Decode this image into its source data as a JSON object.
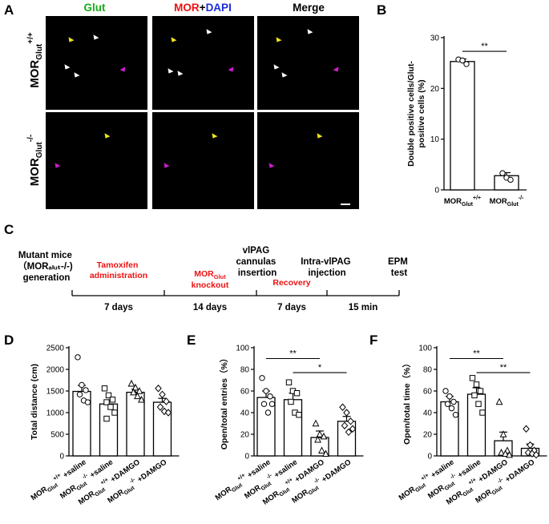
{
  "panels": {
    "A": {
      "label": "A",
      "columns": [
        {
          "text": "Glut",
          "color": "#1aaa1a"
        },
        {
          "text": "MOR",
          "color": "#ee1111"
        },
        {
          "text": "+",
          "color": "#000000"
        },
        {
          "text": "DAPI",
          "color": "#1b2cd8"
        },
        {
          "text": "Merge",
          "color": "#000000"
        }
      ],
      "row_labels": [
        {
          "base": "MOR",
          "sub": "Glut",
          "sup": "+/+"
        },
        {
          "base": "MOR",
          "sub": "Glut",
          "sup": "-/-"
        }
      ],
      "arrow_colors": {
        "white": "#ffffff",
        "yellow": "#f4e21a",
        "magenta": "#d21ad2"
      }
    },
    "B": {
      "label": "B"
    },
    "C": {
      "label": "C",
      "events": [
        {
          "lines": [
            "Mutant mice",
            "（MORₐₗᵤₜ-/-)",
            "generation"
          ],
          "color": "#000000"
        },
        {
          "lines": [
            "Tamoxifen",
            "administration"
          ],
          "color": "#ee1111"
        },
        {
          "lines": [
            "MOR",
            "knockout"
          ],
          "sub": "Glut",
          "color": "#ee1111"
        },
        {
          "lines": [
            "vlPAG",
            "cannulas",
            "insertion"
          ],
          "color": "#000000"
        },
        {
          "lines": [
            "Recovery"
          ],
          "color": "#ee1111"
        },
        {
          "lines": [
            "Intra-vlPAG",
            "injection"
          ],
          "color": "#000000"
        },
        {
          "lines": [
            "EPM",
            "test"
          ],
          "color": "#000000"
        }
      ],
      "durations": [
        "7 days",
        "14 days",
        "7 days",
        "15 min"
      ]
    },
    "D": {
      "label": "D"
    },
    "E": {
      "label": "E"
    },
    "F": {
      "label": "F"
    }
  },
  "chart_data": [
    {
      "id": "B",
      "type": "bar",
      "categories": [
        "MOR_Glut+/+",
        "MOR_Glut-/-"
      ],
      "category_labels": [
        {
          "base": "MOR",
          "sub": "Glut",
          "sup": "+/+"
        },
        {
          "base": "MOR",
          "sub": "Glut",
          "sup": "-/-"
        }
      ],
      "values": [
        25.3,
        2.8
      ],
      "errors": [
        0.5,
        0.6
      ],
      "points": [
        [
          25.7,
          25.5,
          24.8
        ],
        [
          3.3,
          2.4,
          2.0
        ]
      ],
      "point_marker": "circle",
      "ylabel": "Double positive cells/Glut-positive cells (%)",
      "ylim": [
        0,
        30
      ],
      "yticks": [
        0,
        10,
        20,
        30
      ],
      "significance": [
        {
          "from": 0,
          "to": 1,
          "label": "**"
        }
      ]
    },
    {
      "id": "D",
      "type": "bar",
      "categories": [
        "MORGlut+/+ +saline",
        "MORGlut-/- +saline",
        "MORGlut+/+ +DAMGO",
        "MORGlut-/- +DAMGO"
      ],
      "category_labels": [
        {
          "base": "MOR",
          "sub": "Glut",
          "sup": "+/+",
          "rest": "+saline"
        },
        {
          "base": "MOR",
          "sub": "Glut",
          "sup": "-/-",
          "rest": "+saline"
        },
        {
          "base": "MOR",
          "sub": "Glut",
          "sup": "+/+",
          "rest": "+DAMGO"
        },
        {
          "base": "MOR",
          "sub": "Glut",
          "sup": "-/-",
          "rest": "+DAMGO"
        }
      ],
      "values": [
        1490,
        1200,
        1470,
        1240
      ],
      "errors": [
        140,
        90,
        70,
        90
      ],
      "points": [
        [
          2280,
          1640,
          1520,
          1420,
          1280,
          1240
        ],
        [
          1560,
          1400,
          1300,
          1240,
          1130,
          1000,
          860
        ],
        [
          1670,
          1580,
          1500,
          1470,
          1380,
          1300
        ],
        [
          1560,
          1420,
          1260,
          1130,
          1030,
          1000
        ]
      ],
      "point_markers": [
        "circle",
        "square",
        "triangle",
        "diamond"
      ],
      "ylabel": "Total distance (cm)",
      "ylim": [
        0,
        2500
      ],
      "yticks": [
        0,
        500,
        1000,
        1500,
        2000,
        2500
      ],
      "significance": []
    },
    {
      "id": "E",
      "type": "bar",
      "categories": [
        "MORGlut+/+ +saline",
        "MORGlut-/- +saline",
        "MORGlut+/+ +DAMGO",
        "MORGlut-/- +DAMGO"
      ],
      "category_labels": [
        {
          "base": "MOR",
          "sub": "Glut",
          "sup": "+/+",
          "rest": "+saline"
        },
        {
          "base": "MOR",
          "sub": "Glut",
          "sup": "-/-",
          "rest": "+saline"
        },
        {
          "base": "MOR",
          "sub": "Glut",
          "sup": "+/+",
          "rest": "+DAMGO"
        },
        {
          "base": "MOR",
          "sub": "Glut",
          "sup": "-/-",
          "rest": "+DAMGO"
        }
      ],
      "values": [
        54,
        52,
        17,
        32
      ],
      "errors": [
        6,
        6,
        6,
        4.5
      ],
      "points": [
        [
          72,
          60,
          55,
          48,
          40,
          48
        ],
        [
          68,
          60,
          58,
          50,
          40,
          38
        ],
        [
          30,
          20,
          18,
          15,
          5,
          2
        ],
        [
          45,
          40,
          32,
          28,
          22,
          25
        ]
      ],
      "point_markers": [
        "circle",
        "square",
        "triangle",
        "diamond"
      ],
      "ylabel": "Open/total entries（%）",
      "ylim": [
        0,
        100
      ],
      "yticks": [
        0,
        20,
        40,
        60,
        80,
        100
      ],
      "significance": [
        {
          "from": 0,
          "to": 2,
          "label": "**"
        },
        {
          "from": 1,
          "to": 3,
          "label": "*"
        }
      ]
    },
    {
      "id": "F",
      "type": "bar",
      "categories": [
        "MORGlut+/+ +saline",
        "MORGlut-/- +saline",
        "MORGlut+/+ +DAMGO",
        "MORGlut-/- +DAMGO"
      ],
      "category_labels": [
        {
          "base": "MOR",
          "sub": "Glut",
          "sup": "+/+",
          "rest": "+saline"
        },
        {
          "base": "MOR",
          "sub": "Glut",
          "sup": "-/-",
          "rest": "+saline"
        },
        {
          "base": "MOR",
          "sub": "Glut",
          "sup": "+/+",
          "rest": "+DAMGO"
        },
        {
          "base": "MOR",
          "sub": "Glut",
          "sup": "-/-",
          "rest": "+DAMGO"
        }
      ],
      "values": [
        50,
        57,
        14,
        7
      ],
      "errors": [
        5,
        6,
        8,
        4
      ],
      "points": [
        [
          60,
          55,
          50,
          48,
          44,
          38
        ],
        [
          72,
          66,
          60,
          56,
          48,
          40
        ],
        [
          50,
          20,
          5,
          3,
          2,
          1
        ],
        [
          25,
          10,
          5,
          3,
          2,
          1
        ]
      ],
      "point_markers": [
        "circle",
        "square",
        "triangle",
        "diamond"
      ],
      "ylabel": "Open/total time（%）",
      "ylim": [
        0,
        100
      ],
      "yticks": [
        0,
        20,
        40,
        60,
        80,
        100
      ],
      "significance": [
        {
          "from": 0,
          "to": 2,
          "label": "**"
        },
        {
          "from": 1,
          "to": 3,
          "label": "**"
        }
      ]
    }
  ]
}
